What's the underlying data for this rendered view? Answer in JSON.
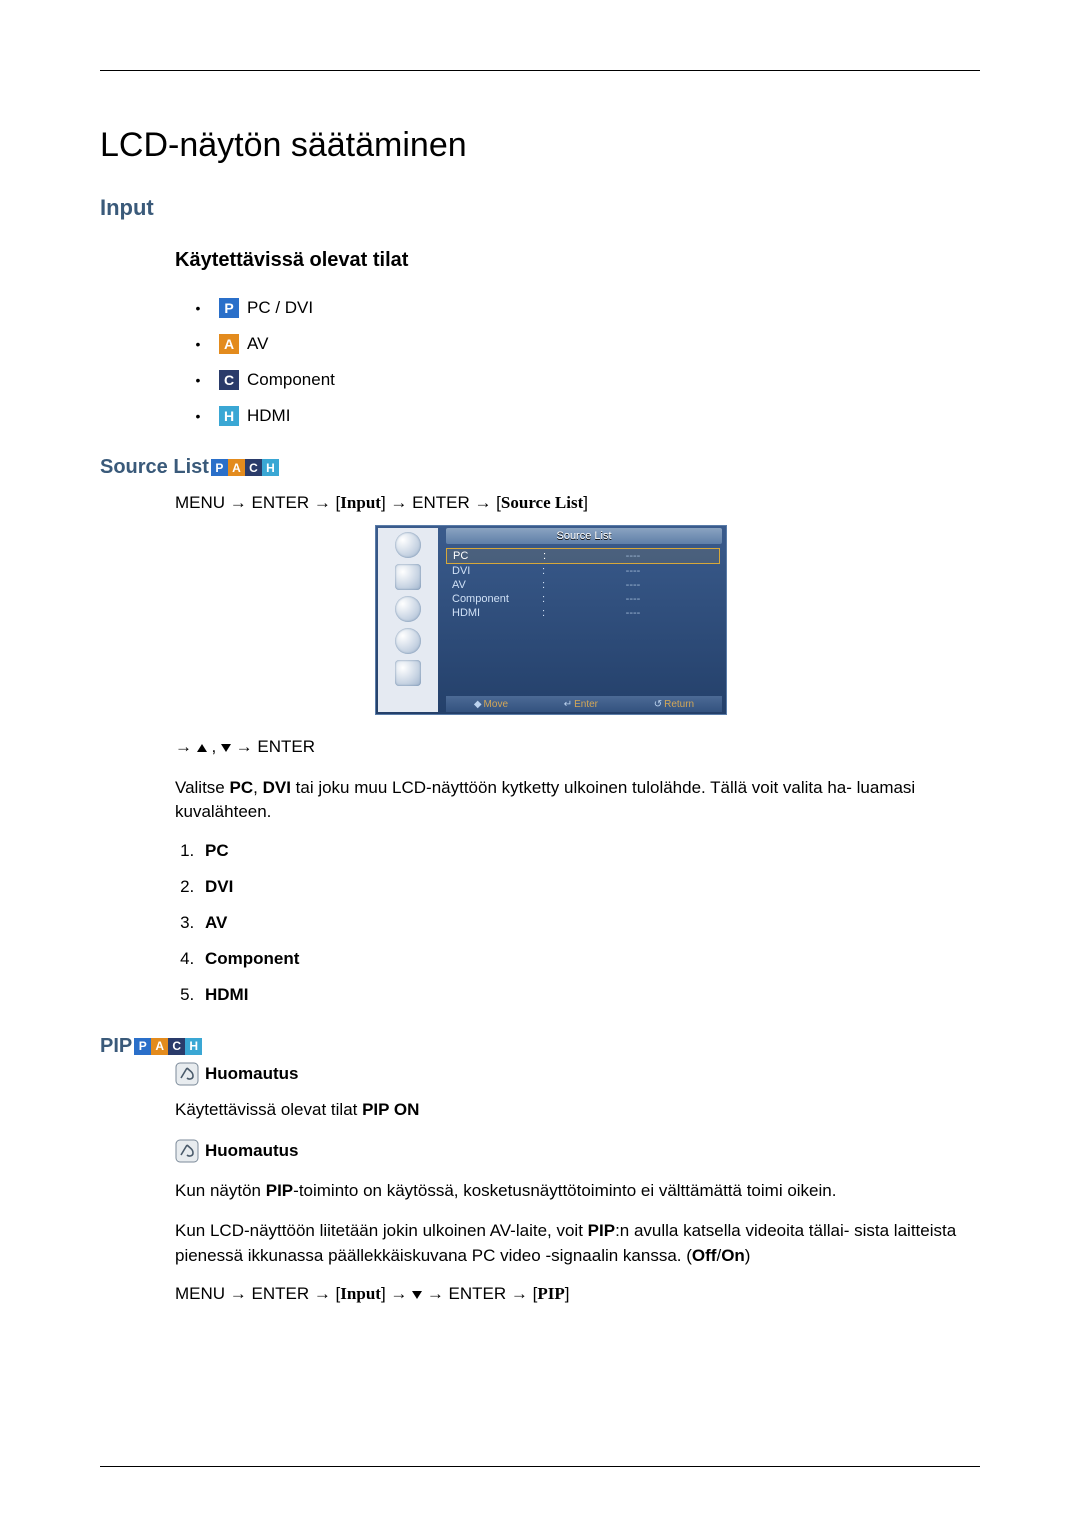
{
  "badge_colors": {
    "P": "#2a6fc9",
    "A": "#e38b1d",
    "C": "#2a3b6a",
    "H": "#3aa7d4"
  },
  "title": "LCD-näytön säätäminen",
  "input_heading": "Input",
  "modes_heading": "Käytettävissä olevat tilat",
  "modes": [
    {
      "badge": "P",
      "label": " PC / DVI"
    },
    {
      "badge": "A",
      "label": " AV"
    },
    {
      "badge": "C",
      "label": " Component"
    },
    {
      "badge": "H",
      "label": " HDMI"
    }
  ],
  "source_list_heading": "Source List",
  "source_list_badges": [
    "P",
    "A",
    "C",
    "H"
  ],
  "menu_path_1": {
    "pre": "MENU → ENTER → [",
    "serif1": "Input",
    "mid": "] → ENTER → [",
    "serif2": "Source List",
    "post": "]"
  },
  "osd": {
    "title": "Source List",
    "rows": [
      {
        "label": "PC",
        "value": "----",
        "selected": true
      },
      {
        "label": "DVI",
        "value": "----",
        "selected": false
      },
      {
        "label": "AV",
        "value": "----",
        "selected": false
      },
      {
        "label": "Component",
        "value": "----",
        "selected": false
      },
      {
        "label": "HDMI",
        "value": "----",
        "selected": false
      }
    ],
    "footer": {
      "move": "Move",
      "enter": "Enter",
      "return": "Return"
    }
  },
  "arrow_enter": "→ ▲ , ▼ → ENTER",
  "source_desc_pre": "Valitse ",
  "source_desc_bold1": "PC",
  "source_desc_mid1": ", ",
  "source_desc_bold2": "DVI",
  "source_desc_post": " tai joku muu LCD-näyttöön kytketty ulkoinen tulolähde. Tällä voit valita ha-\nluamasi kuvalähteen.",
  "numbered": [
    "PC",
    "DVI",
    "AV",
    "Component",
    "HDMI"
  ],
  "pip_heading": "PIP",
  "pip_badges": [
    "P",
    "A",
    "C",
    "H"
  ],
  "note_label": "Huomautus",
  "pip_modes_pre": "Käytettävissä olevat tilat ",
  "pip_modes_bold": "PIP ON",
  "pip_note2_pre": "Kun näytön ",
  "pip_note2_bold": "PIP",
  "pip_note2_post": "-toiminto on käytössä, kosketusnäyttötoiminto ei välttämättä toimi oikein.",
  "pip_para_pre": "Kun LCD-näyttöön liitetään jokin ulkoinen AV-laite, voit ",
  "pip_para_bold1": "PIP",
  "pip_para_mid": ":n avulla katsella videoita tällai-\nsista laitteista pienessä ikkunassa päällekkäiskuvana PC video -signaalin kanssa. (",
  "pip_para_bold2": "Off",
  "pip_para_slash": "/",
  "pip_para_bold3": "On",
  "pip_para_post": ")",
  "menu_path_2": {
    "pre": "MENU → ENTER → [",
    "serif1": "Input",
    "mid": "] → ▼ → ENTER → [",
    "serif2": "PIP",
    "post": "]"
  }
}
